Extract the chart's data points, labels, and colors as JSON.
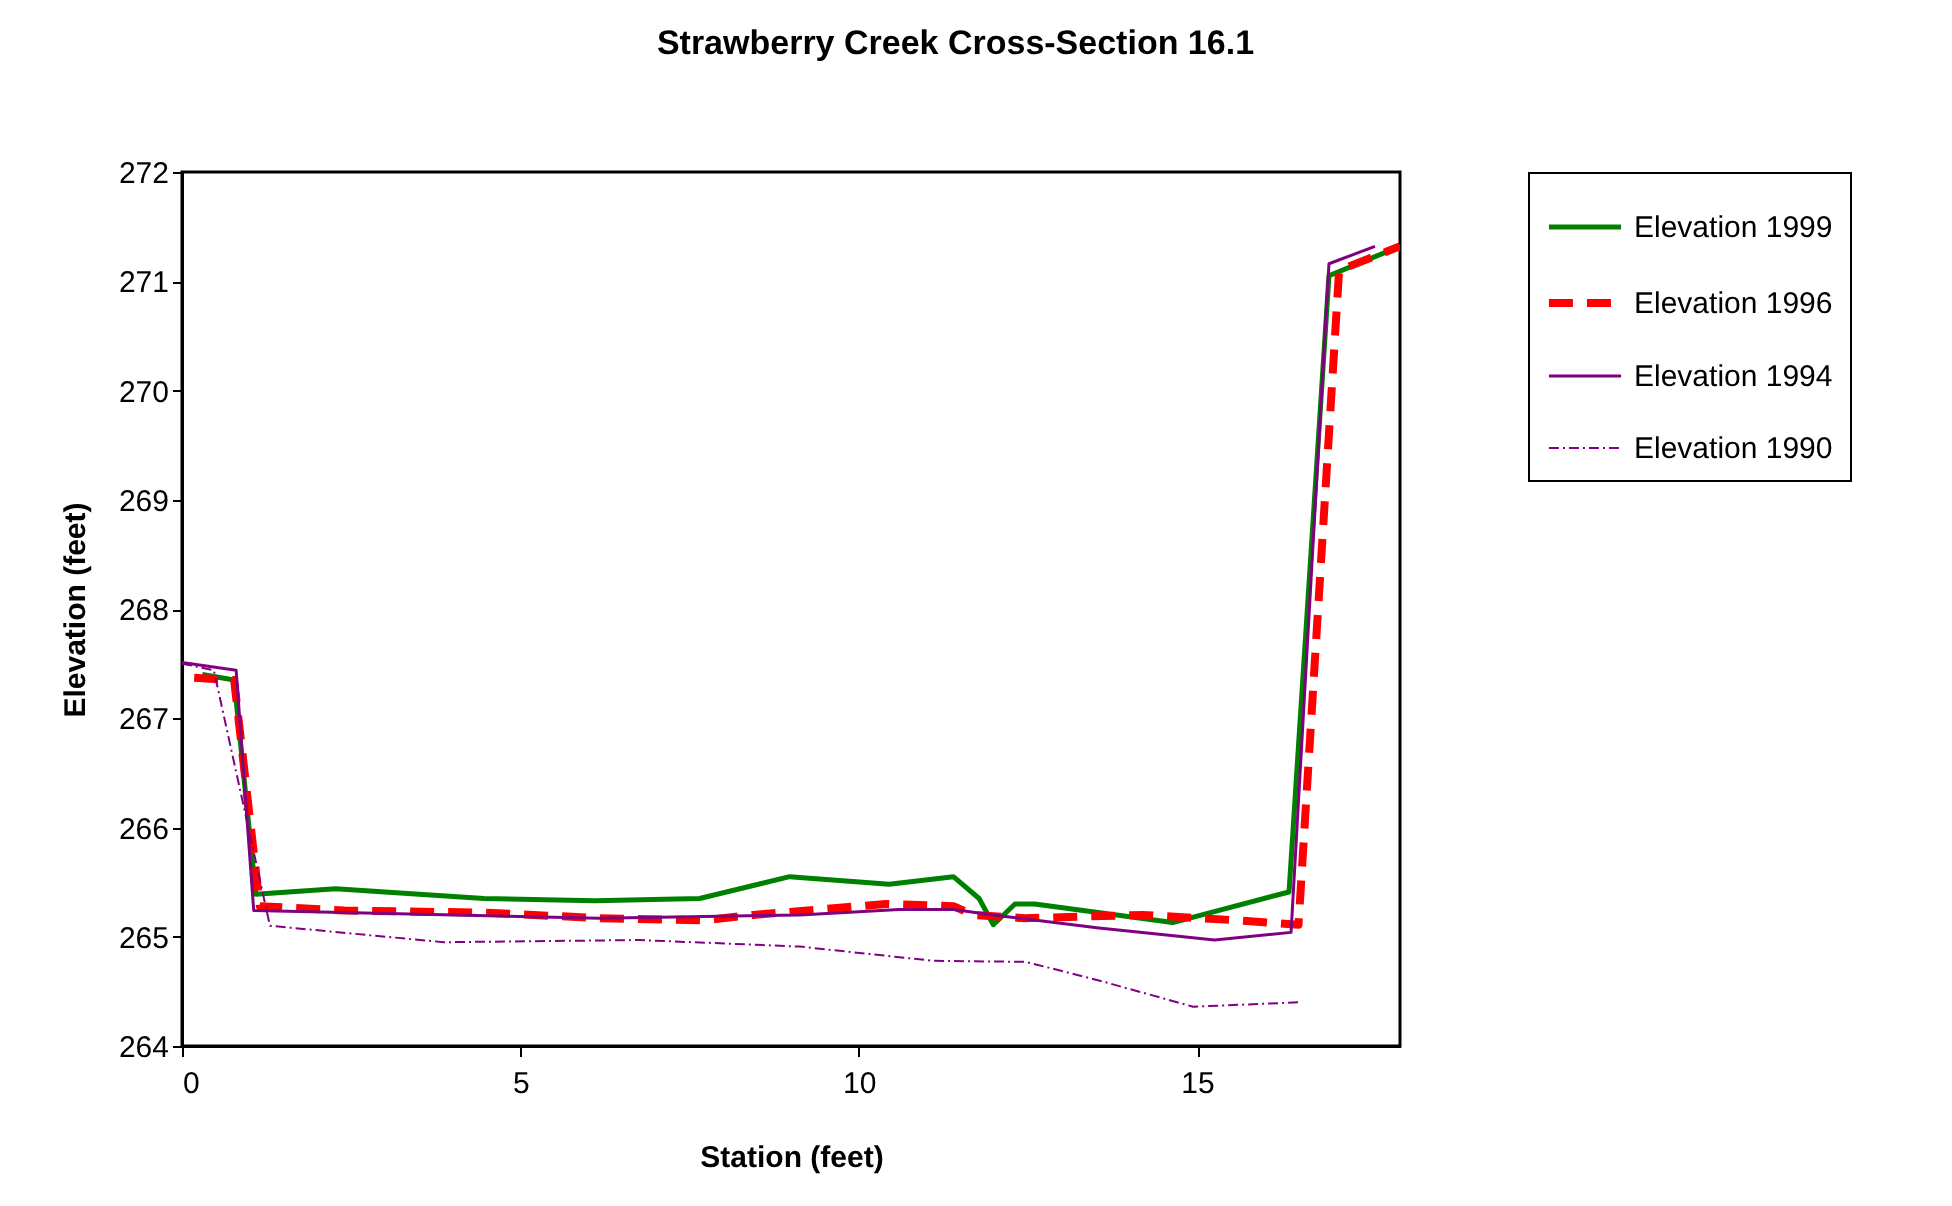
{
  "chart_data": {
    "type": "line",
    "title": "Strawberry Creek Cross-Section 16.1",
    "xlabel": "Station (feet)",
    "ylabel": "Elevation (feet)",
    "xlim": [
      0,
      18
    ],
    "xticks": [
      0,
      5,
      10,
      15
    ],
    "ylim": [
      264,
      272
    ],
    "yticks": [
      264,
      265,
      266,
      267,
      268,
      269,
      270,
      271,
      272
    ],
    "grid": false,
    "legend": "top right",
    "marker": "none",
    "series": [
      {
        "name": "Elevation 1999",
        "color": "#008000",
        "line_style": "solid",
        "x": [
          0.3,
          0.77,
          1.09,
          2.27,
          4.46,
          6.1,
          7.65,
          8.98,
          10.45,
          11.4,
          11.78,
          11.99,
          12.31,
          12.6,
          14.64,
          16.36,
          16.95,
          18
        ],
        "values": [
          267.4,
          267.35,
          265.39,
          265.44,
          265.35,
          265.33,
          265.35,
          265.55,
          265.48,
          265.55,
          265.35,
          265.11,
          265.3,
          265.3,
          265.13,
          265.41,
          271.05,
          271.32
        ]
      },
      {
        "name": "Elevation 1996",
        "color": "#ff0000",
        "line_style": "dashed",
        "x": [
          0.18,
          0.77,
          1.15,
          2.4,
          4.5,
          6.17,
          7.7,
          8.44,
          10.4,
          11.4,
          11.7,
          12.45,
          14.2,
          15.6,
          16.5,
          17.1,
          18
        ],
        "values": [
          267.37,
          267.35,
          265.28,
          265.24,
          265.22,
          265.17,
          265.15,
          265.2,
          265.3,
          265.28,
          265.2,
          265.17,
          265.2,
          265.15,
          265.11,
          271.1,
          271.32
        ]
      },
      {
        "name": "Elevation 1994",
        "color": "#800080",
        "line_style": "solid",
        "x": [
          0,
          0.8,
          1.06,
          6.17,
          9.13,
          10.6,
          11.4,
          12.1,
          13.55,
          15.26,
          16.39,
          16.95,
          17.63
        ],
        "values": [
          267.51,
          267.44,
          265.24,
          265.17,
          265.2,
          265.25,
          265.25,
          265.19,
          265.08,
          264.97,
          265.04,
          271.16,
          271.32
        ]
      },
      {
        "name": "Elevation 1990",
        "color": "#800080",
        "line_style": "dotted",
        "x": [
          0,
          0.47,
          1.3,
          3.87,
          6.76,
          9.13,
          11.1,
          12.47,
          13.55,
          14.94,
          16.5
        ],
        "values": [
          267.5,
          267.44,
          265.1,
          264.95,
          264.97,
          264.91,
          264.78,
          264.77,
          264.6,
          264.36,
          264.4
        ]
      }
    ]
  }
}
